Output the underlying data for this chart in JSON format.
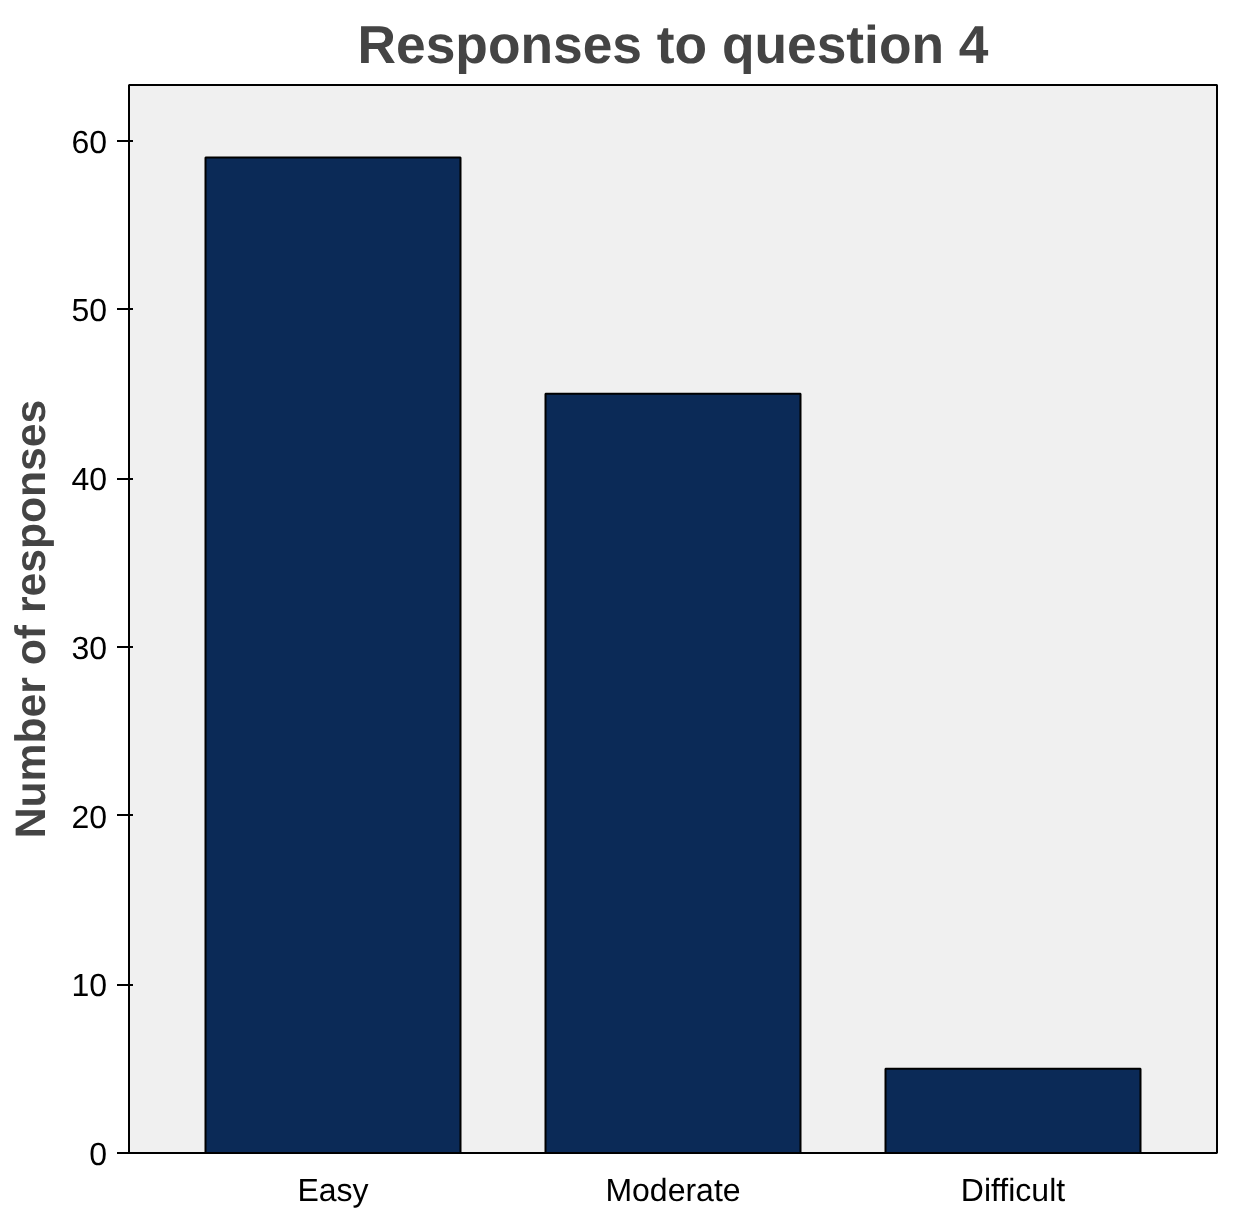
{
  "chart_data": {
    "type": "bar",
    "title": "Responses to question 4",
    "ylabel": "Number of responses",
    "categories": [
      "Easy",
      "Moderate",
      "Difficult"
    ],
    "values": [
      59,
      45,
      5
    ],
    "color": "#0b2a57",
    "ylim": [
      0,
      63.3
    ],
    "yticks": [
      0,
      10,
      20,
      30,
      40,
      50,
      60
    ],
    "grid": false
  }
}
